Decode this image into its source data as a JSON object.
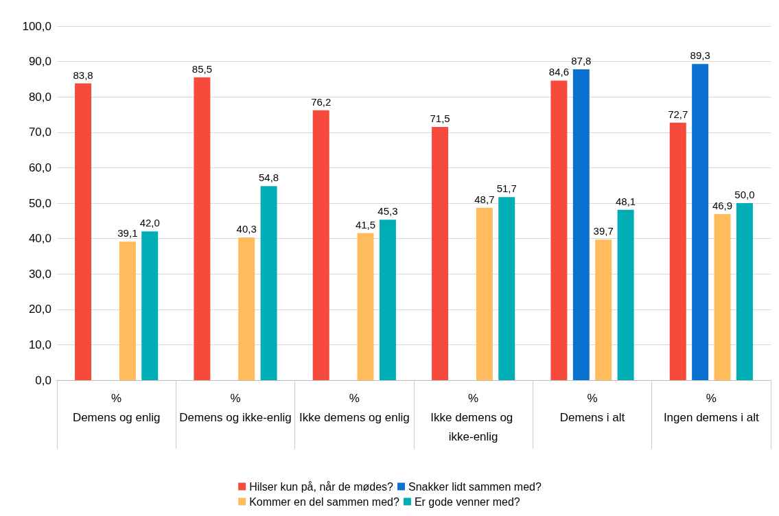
{
  "chart_data": {
    "type": "bar",
    "categories": [
      "%\nDemens og enlig",
      "%\nDemens og ikke-enlig",
      "%\nIkke demens og enlig",
      "%\nIkke demens og ikke-enlig",
      "%\nDemens i alt",
      "%\nIngen demens i alt"
    ],
    "series": [
      {
        "name": "Hilser kun på, når de mødes?",
        "color": "#f64b3c",
        "values": [
          83.8,
          85.5,
          76.2,
          71.5,
          84.6,
          72.7
        ],
        "value_labels": [
          "83,8",
          "85,5",
          "76,2",
          "71,5",
          "84,6",
          "72,7"
        ]
      },
      {
        "name": "Snakker lidt sammen med?",
        "color": "#0b72d1",
        "values": [
          null,
          null,
          null,
          null,
          87.8,
          89.3
        ],
        "value_labels": [
          null,
          null,
          null,
          null,
          "87,8",
          "89,3"
        ]
      },
      {
        "name": "Kommer en del sammen med?",
        "color": "#ffbb5c",
        "values": [
          39.1,
          40.3,
          41.5,
          48.7,
          39.7,
          46.9
        ],
        "value_labels": [
          "39,1",
          "40,3",
          "41,5",
          "48,7",
          "39,7",
          "46,9"
        ]
      },
      {
        "name": "Er gode venner med?",
        "color": "#00adb5",
        "values": [
          42.0,
          54.8,
          45.3,
          51.7,
          48.1,
          50.0
        ],
        "value_labels": [
          "42,0",
          "54,8",
          "45,3",
          "51,7",
          "48,1",
          "50,0"
        ]
      }
    ],
    "ylim": [
      0,
      100
    ],
    "yticks": [
      {
        "value": 0,
        "label": "0,0"
      },
      {
        "value": 10,
        "label": "10,0"
      },
      {
        "value": 20,
        "label": "20,0"
      },
      {
        "value": 30,
        "label": "30,0"
      },
      {
        "value": 40,
        "label": "40,0"
      },
      {
        "value": 50,
        "label": "50,0"
      },
      {
        "value": 60,
        "label": "60,0"
      },
      {
        "value": 70,
        "label": "70,0"
      },
      {
        "value": 80,
        "label": "80,0"
      },
      {
        "value": 90,
        "label": "90,0"
      },
      {
        "value": 100,
        "label": "100,0"
      }
    ],
    "grid": "y",
    "legend": "bottom"
  }
}
